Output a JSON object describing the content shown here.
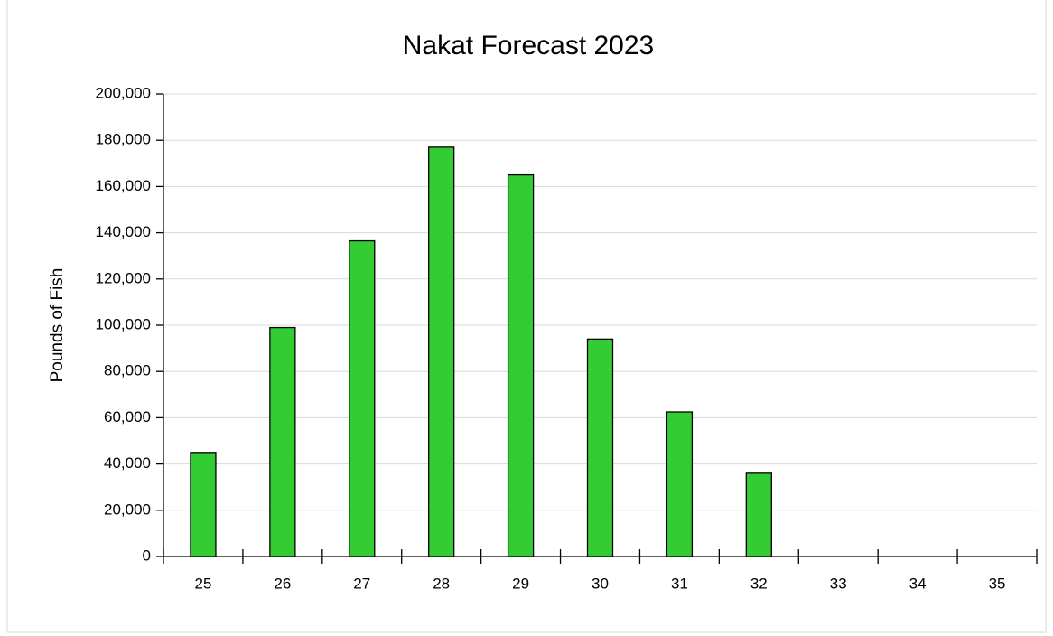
{
  "chart_data": {
    "type": "bar",
    "title": "Nakat Forecast 2023",
    "y_label": "Pounds of Fish",
    "categories": [
      "25",
      "26",
      "27",
      "28",
      "29",
      "30",
      "31",
      "32",
      "33",
      "34",
      "35"
    ],
    "values": [
      45000,
      99000,
      136500,
      177000,
      165000,
      94000,
      62500,
      36000,
      0,
      0,
      0
    ],
    "color": "#33cc33",
    "ylim": [
      0,
      200000
    ],
    "yticks": [
      0,
      {
        "value": 20000,
        "label": "20,000"
      },
      {
        "value": 40000,
        "label": "40,000"
      },
      {
        "value": 60000,
        "label": "60,000"
      },
      {
        "value": 80000,
        "label": "80,000"
      },
      {
        "value": 100000,
        "label": "100,000"
      },
      {
        "value": 120000,
        "label": "120,000"
      },
      {
        "value": 140000,
        "label": "140,000"
      },
      {
        "value": 160000,
        "label": "160,000"
      },
      {
        "value": 180000,
        "label": "180,000"
      },
      {
        "value": 200000,
        "label": "200,000"
      }
    ],
    "grid": true
  }
}
